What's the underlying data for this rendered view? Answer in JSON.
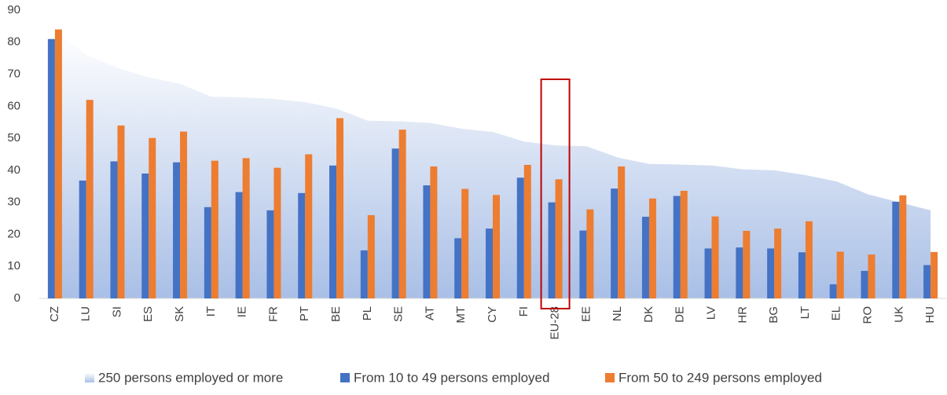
{
  "chart_data": {
    "type": "bar",
    "categories": [
      "CZ",
      "LU",
      "SI",
      "ES",
      "SK",
      "IT",
      "IE",
      "FR",
      "PT",
      "BE",
      "PL",
      "SE",
      "AT",
      "MT",
      "CY",
      "FI",
      "EU-28",
      "EE",
      "NL",
      "DK",
      "DE",
      "LV",
      "HR",
      "BG",
      "LT",
      "EL",
      "RO",
      "UK",
      "HU"
    ],
    "series": [
      {
        "name": "250 persons employed or more",
        "color": "#b4c7e7",
        "kind": "area",
        "values": [
          84,
          76,
          72,
          69,
          67,
          63,
          62.8,
          62.3,
          61.3,
          59.3,
          55.5,
          55.3,
          54.8,
          53,
          52,
          49,
          47.8,
          47.5,
          44,
          42,
          41.8,
          41.5,
          40.3,
          40,
          38.5,
          36.5,
          32.5,
          30,
          27.5
        ]
      },
      {
        "name": "From 10 to 49 persons employed",
        "color": "#4472c4",
        "values": [
          81,
          36.8,
          42.8,
          39,
          42.5,
          28.5,
          33.2,
          27.5,
          32.9,
          41.5,
          15,
          46.8,
          35.3,
          18.8,
          21.8,
          37.7,
          30,
          21.2,
          34.3,
          25.5,
          32,
          15.6,
          15.9,
          15.6,
          14.4,
          4.4,
          8.6,
          30.2,
          10.4
        ]
      },
      {
        "name": "From 50 to 249 persons employed",
        "color": "#ed7d31",
        "values": [
          84,
          62,
          54,
          50.1,
          52.1,
          43,
          43.8,
          40.8,
          45,
          56.3,
          26,
          52.7,
          41.2,
          34.2,
          32.3,
          41.7,
          37.2,
          27.8,
          41.2,
          31.2,
          33.6,
          25.6,
          21.1,
          21.8,
          24.1,
          14.6,
          13.7,
          32.2,
          14.5
        ]
      }
    ],
    "ylim": [
      0,
      90
    ],
    "yticks": [
      0,
      10,
      20,
      30,
      40,
      50,
      60,
      70,
      80,
      90
    ],
    "grid": false,
    "legend": "bottom"
  }
}
